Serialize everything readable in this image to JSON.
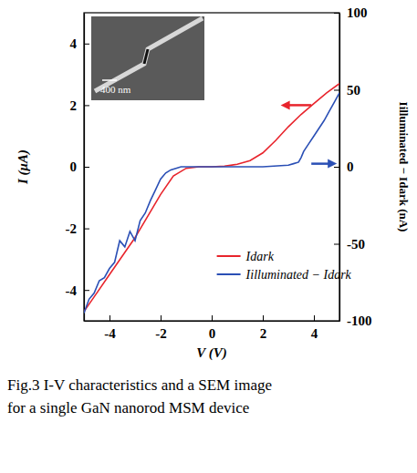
{
  "chart_data": {
    "type": "line",
    "x_label": "V (V)",
    "y_label": "I (μA)",
    "y2_label": "Iilluminated − Idark (nA)",
    "xlim": [
      -5,
      5
    ],
    "xticks": [
      -4,
      -2,
      0,
      2,
      4
    ],
    "ylim": [
      -5,
      5
    ],
    "yticks": [
      -4,
      -2,
      0,
      2,
      4
    ],
    "y2lim": [
      -100,
      100
    ],
    "y2ticks": [
      -100,
      -50,
      0,
      50,
      100
    ],
    "legend": "lower right",
    "annotations": [
      "400 nm"
    ],
    "caption": "Fig.3  I-V characteristics and a SEM image for a single GaN nanorod MSM device",
    "series": [
      {
        "name": "Idark",
        "color": "#e8242c",
        "x": [
          -5,
          -4.5,
          -4,
          -3.5,
          -3,
          -2.5,
          -2,
          -1.5,
          -1,
          -0.5,
          0,
          0.5,
          1,
          1.5,
          2,
          2.5,
          3,
          3.5,
          4,
          4.5,
          5
        ],
        "values": [
          -4.7,
          -4.1,
          -3.5,
          -2.9,
          -2.3,
          -1.6,
          -0.9,
          -0.3,
          -0.05,
          0,
          0,
          0.02,
          0.08,
          0.2,
          0.45,
          0.85,
          1.3,
          1.7,
          2.05,
          2.4,
          2.7
        ]
      },
      {
        "name": "Iilluminated − Idark",
        "color": "#2a4fb5",
        "axis": "y2",
        "x": [
          -5,
          -4.8,
          -4.6,
          -4.4,
          -4.2,
          -4,
          -3.8,
          -3.6,
          -3.4,
          -3.2,
          -3,
          -2.8,
          -2.6,
          -2.4,
          -2.2,
          -2,
          -1.8,
          -1.6,
          -1.4,
          -1.2,
          -1,
          0,
          1,
          2,
          3,
          3.2,
          3.4,
          3.5,
          3.6,
          3.8,
          4,
          4.2,
          4.4,
          4.6,
          4.8,
          5
        ],
        "values": [
          -95,
          -86,
          -82,
          -74,
          -72,
          -66,
          -62,
          -48,
          -52,
          -42,
          -48,
          -35,
          -30,
          -22,
          -15,
          -8,
          -4,
          -2,
          -1,
          0,
          0,
          0,
          0,
          0,
          1,
          2,
          3,
          6,
          10,
          15,
          20,
          25,
          30,
          36,
          42,
          48
        ]
      }
    ]
  }
}
